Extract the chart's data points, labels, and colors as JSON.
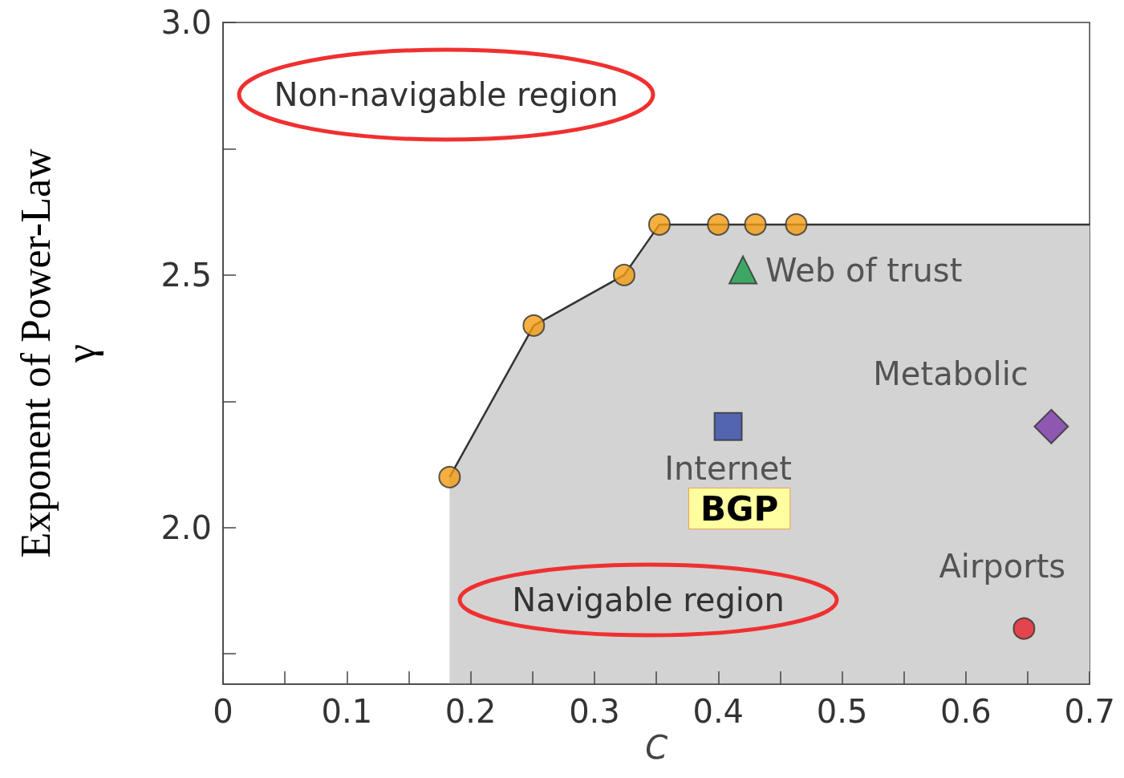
{
  "chart_data": {
    "type": "scatter",
    "xlabel": "C",
    "ylabel": "Exponent of Power-Law\nγ",
    "xlim": [
      0,
      0.7
    ],
    "ylim": [
      1.69,
      3.0
    ],
    "xticks": [
      0,
      {
        "value": 0.05,
        "label": null
      },
      0.1,
      {
        "value": 0.15,
        "label": null
      },
      0.2,
      {
        "value": 0.25,
        "label": null
      },
      0.3,
      {
        "value": 0.35,
        "label": null
      },
      0.4,
      {
        "value": 0.45,
        "label": null
      },
      0.5,
      {
        "value": 0.55,
        "label": null
      },
      0.6,
      {
        "value": 0.65,
        "label": null
      },
      0.7
    ],
    "yticks": [
      {
        "value": 1.75,
        "label": null
      },
      {
        "value": 2.0,
        "label": "2.0"
      },
      {
        "value": 2.25,
        "label": null
      },
      {
        "value": 2.5,
        "label": "2.5"
      },
      {
        "value": 2.75,
        "label": null
      },
      {
        "value": 3.0,
        "label": "3.0"
      }
    ],
    "grid": false,
    "legend": false,
    "series": [
      {
        "type": "area",
        "color": "#d3d3d3",
        "marker": "none",
        "x": [
          0.183,
          0.251,
          0.324,
          0.3525,
          0.4,
          0.43,
          0.463,
          0.7
        ],
        "values": [
          2.1,
          2.4,
          2.5,
          2.6,
          2.6,
          2.6,
          2.6,
          2.6
        ]
      },
      {
        "type": "scatter",
        "color": "#f39c12",
        "marker": "circle",
        "x": [
          0.183,
          0.251,
          0.324,
          0.3525,
          0.4,
          0.43,
          0.463
        ],
        "values": [
          2.1,
          2.4,
          2.5,
          2.6,
          2.6,
          2.6,
          2.6
        ]
      },
      {
        "type": "scatter",
        "name": "Web of trust",
        "color": "#1a9c4a",
        "marker": "triangle",
        "x": [
          0.42
        ],
        "values": [
          2.51
        ]
      },
      {
        "type": "scatter",
        "name": "Internet",
        "color": "#3348a8",
        "marker": "square",
        "x": [
          0.408
        ],
        "values": [
          2.2
        ]
      },
      {
        "type": "scatter",
        "name": "Metabolic",
        "color": "#7e3aa8",
        "marker": "diamond",
        "x": [
          0.669
        ],
        "values": [
          2.2
        ]
      },
      {
        "type": "scatter",
        "name": "Airports",
        "color": "#e8202a",
        "marker": "circle",
        "x": [
          0.647
        ],
        "values": [
          1.8
        ]
      }
    ],
    "annotations": [
      "Non-navigable region",
      "Navigable region",
      "BGP"
    ]
  }
}
